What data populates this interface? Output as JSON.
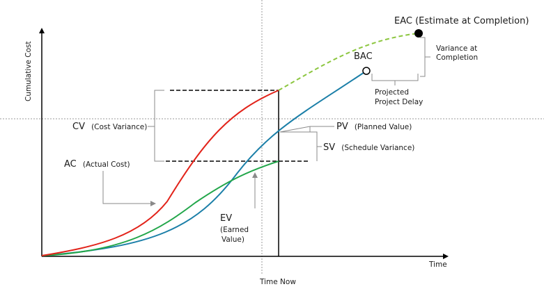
{
  "axes": {
    "y_label": "Cumulative Cost",
    "x_label": "Time",
    "time_now_label": "Time Now"
  },
  "labels": {
    "eac": "EAC (Estimate at Completion)",
    "bac": "BAC",
    "variance_at_completion_line1": "Variance at",
    "variance_at_completion_line2": "Completion",
    "projected_delay_line1": "Projected",
    "projected_delay_line2": "Project Delay",
    "pv_abbr": "PV",
    "pv_full": "(Planned Value)",
    "sv_abbr": "SV",
    "sv_full": "(Schedule Variance)",
    "cv_abbr": "CV",
    "cv_full": "(Cost Variance)",
    "ac_abbr": "AC",
    "ac_full": "(Actual Cost)",
    "ev_abbr": "EV",
    "ev_full_line1": "(Earned",
    "ev_full_line2": "Value)"
  },
  "colors": {
    "actual_cost": "#e2231a",
    "planned_value": "#1b7fa8",
    "earned_value": "#22a64a",
    "eac_projection": "#8cc63f",
    "axis": "#000000",
    "guide": "#9a9a9a",
    "annotation": "#8a8a8a"
  }
}
